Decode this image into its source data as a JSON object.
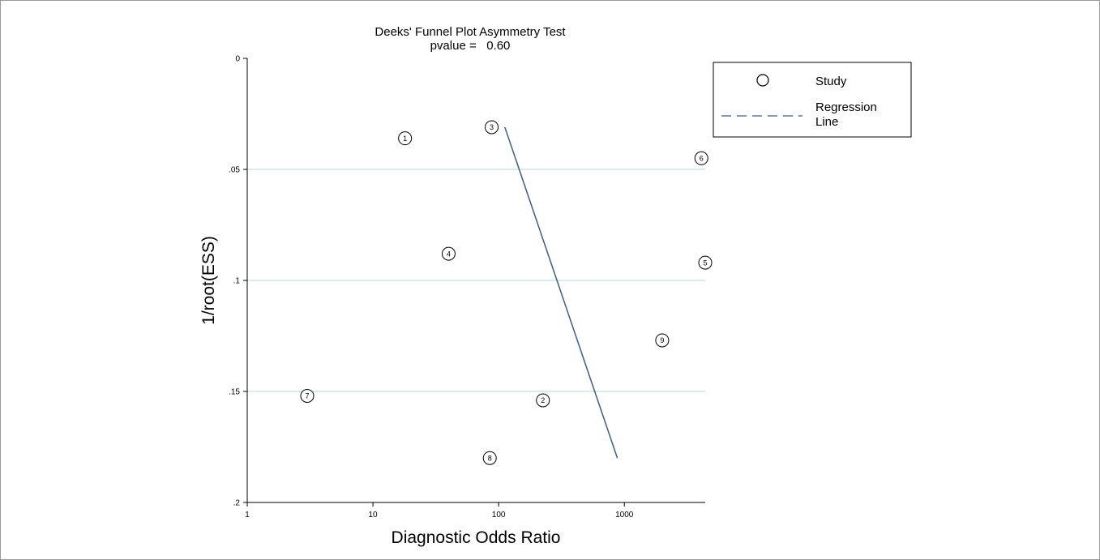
{
  "chart_data": {
    "type": "scatter",
    "title": "Deeks' Funnel Plot Asymmetry Test",
    "subtitle": "pvalue =   0.60",
    "xlabel": "Diagnostic Odds Ratio",
    "ylabel": "1/root(ESS)",
    "x_scale": "log",
    "xlim": [
      1,
      4400
    ],
    "ylim": [
      0,
      0.2
    ],
    "y_inverted": true,
    "x_ticks": [
      {
        "value": 1,
        "label": "1"
      },
      {
        "value": 10,
        "label": "10"
      },
      {
        "value": 100,
        "label": "100"
      },
      {
        "value": 1000,
        "label": "1000"
      }
    ],
    "y_ticks": [
      {
        "value": 0,
        "label": "0"
      },
      {
        "value": 0.05,
        "label": ".05"
      },
      {
        "value": 0.1,
        "label": ".1"
      },
      {
        "value": 0.15,
        "label": ".15"
      },
      {
        "value": 0.2,
        "label": ".2"
      }
    ],
    "gridlines_y": [
      0.05,
      0.1,
      0.15
    ],
    "legend": {
      "placement": "top-right",
      "entries": [
        {
          "label": "Study",
          "symbol": "circle"
        },
        {
          "label": "Regression Line",
          "label_lines": [
            "Regression",
            "Line"
          ],
          "symbol": "dashed-line"
        }
      ]
    },
    "series": [
      {
        "name": "Study",
        "points": [
          {
            "id": "1",
            "x": 18,
            "y": 0.036
          },
          {
            "id": "2",
            "x": 225,
            "y": 0.154
          },
          {
            "id": "3",
            "x": 88,
            "y": 0.031
          },
          {
            "id": "4",
            "x": 40,
            "y": 0.088
          },
          {
            "id": "5",
            "x": 4400,
            "y": 0.092
          },
          {
            "id": "6",
            "x": 4100,
            "y": 0.045
          },
          {
            "id": "7",
            "x": 3,
            "y": 0.152
          },
          {
            "id": "8",
            "x": 85,
            "y": 0.18
          },
          {
            "id": "9",
            "x": 2000,
            "y": 0.127
          }
        ]
      },
      {
        "name": "Regression Line",
        "line": [
          {
            "x": 112,
            "y": 0.031
          },
          {
            "x": 880,
            "y": 0.18
          }
        ]
      }
    ],
    "colors": {
      "regression": "#3a5f8a",
      "gridline": "#cfe3e6",
      "axis": "#000000"
    }
  }
}
